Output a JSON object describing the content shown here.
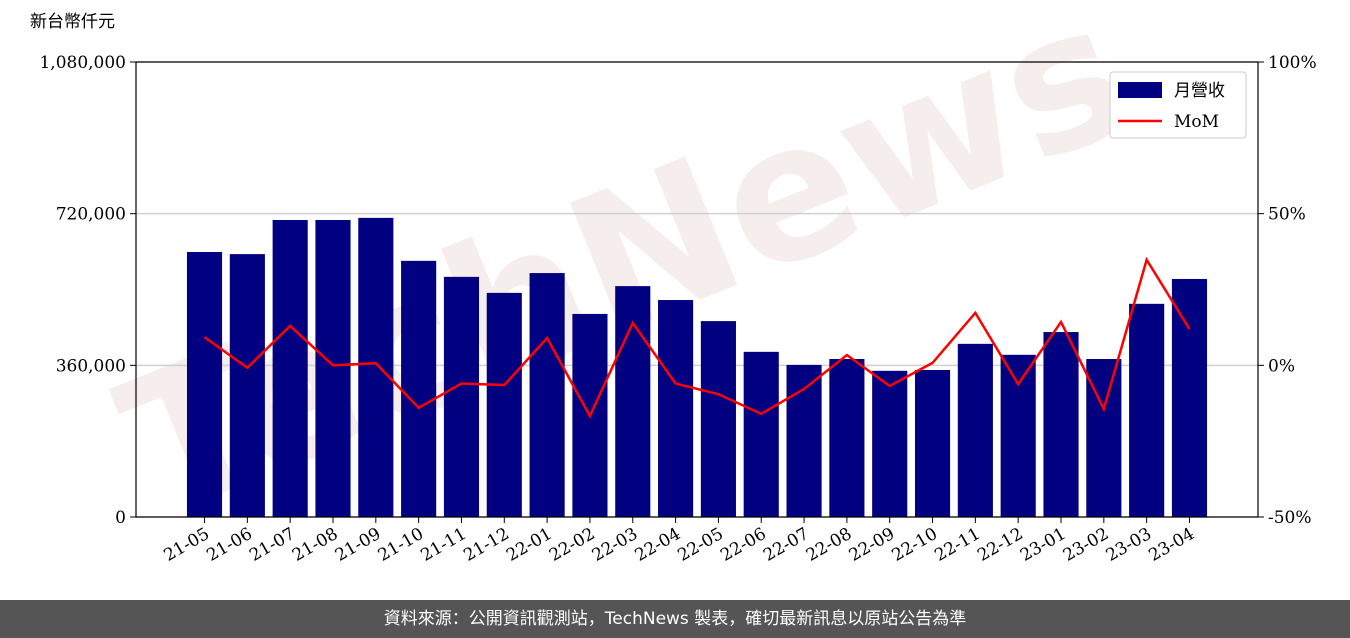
{
  "chart_data": {
    "type": "bar-line",
    "y_label": "新台幣仟元",
    "watermark": "TechNews",
    "categories": [
      "21-05",
      "21-06",
      "21-07",
      "21-08",
      "21-09",
      "21-10",
      "21-11",
      "21-12",
      "22-01",
      "22-02",
      "22-03",
      "22-04",
      "22-05",
      "22-06",
      "22-07",
      "22-08",
      "22-09",
      "22-10",
      "22-11",
      "22-12",
      "23-01",
      "23-02",
      "23-03",
      "23-04"
    ],
    "series": [
      {
        "name": "月營收",
        "type": "bar",
        "color": "#000080",
        "values": [
          629000,
          624000,
          705000,
          705000,
          710000,
          608000,
          570000,
          532000,
          579000,
          482000,
          548000,
          515000,
          465000,
          392000,
          361000,
          375000,
          347000,
          349000,
          411000,
          385000,
          439000,
          375000,
          506000,
          565000
        ]
      },
      {
        "name": "MoM",
        "type": "line",
        "color": "#ff0000",
        "axis": "y2",
        "values": [
          9.3,
          -0.8,
          13,
          0,
          0.7,
          -14,
          -6,
          -6.5,
          9,
          -16.7,
          14,
          -6,
          -9.5,
          -16,
          -7.8,
          3.4,
          -6.8,
          0.8,
          17.3,
          -6.2,
          14.3,
          -14.4,
          34.8,
          12
        ]
      }
    ],
    "ylim": [
      0,
      1080000
    ],
    "yticks": [
      0,
      {
        "value": 360000,
        "label": "360,000"
      },
      {
        "value": 720000,
        "label": "720,000"
      },
      {
        "value": 1080000,
        "label": "1,080,000"
      }
    ],
    "y2lim": [
      -50,
      100
    ],
    "y2ticks": [
      {
        "value": -50,
        "label": "-50%"
      },
      {
        "value": 0,
        "label": "0%"
      },
      {
        "value": 50,
        "label": "50%"
      },
      {
        "value": 100,
        "label": "100%"
      }
    ],
    "grid": true,
    "legend": "upper right"
  },
  "footer": "資料來源：公開資訊觀測站，TechNews 製表，確切最新訊息以原站公告為準"
}
